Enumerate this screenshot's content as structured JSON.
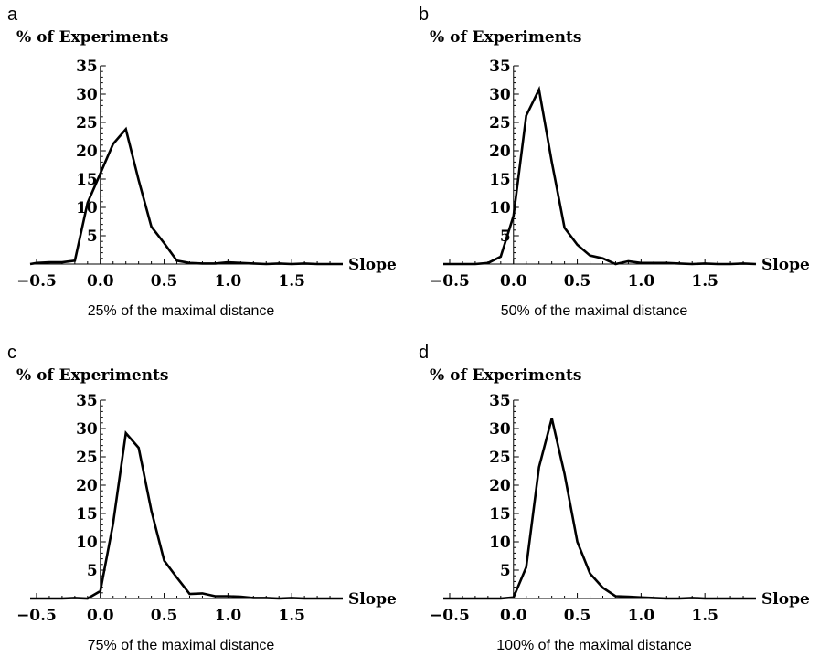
{
  "chart_data": [
    {
      "type": "line",
      "panel": "a",
      "ylabel": "% of Experiments",
      "xlabel": "Slope",
      "caption": "25% of the maximal distance",
      "xlim": [
        -0.55,
        1.9
      ],
      "ylim": [
        0,
        35
      ],
      "xticks": [
        "-0.5",
        "0.0",
        "0.5",
        "1.0",
        "1.5"
      ],
      "yticks": [
        "5",
        "10",
        "15",
        "20",
        "25",
        "30",
        "35"
      ],
      "x": [
        -0.55,
        -0.5,
        -0.4,
        -0.3,
        -0.2,
        -0.1,
        0.0,
        0.1,
        0.2,
        0.3,
        0.4,
        0.5,
        0.6,
        0.7,
        0.8,
        0.9,
        1.0,
        1.1,
        1.2,
        1.3,
        1.4,
        1.5,
        1.6,
        1.7,
        1.8,
        1.9
      ],
      "values": [
        0.0,
        0.2,
        0.3,
        0.3,
        0.6,
        10.8,
        16.0,
        21.2,
        23.8,
        14.8,
        6.6,
        3.7,
        0.6,
        0.2,
        0.1,
        0.1,
        0.3,
        0.2,
        0.1,
        0.0,
        0.1,
        0.0,
        0.1,
        0.0,
        0.0,
        0.0
      ]
    },
    {
      "type": "line",
      "panel": "b",
      "ylabel": "% of Experiments",
      "xlabel": "Slope",
      "caption": "50% of the maximal distance",
      "xlim": [
        -0.55,
        1.9
      ],
      "ylim": [
        0,
        35
      ],
      "xticks": [
        "-0.5",
        "0.0",
        "0.5",
        "1.0",
        "1.5"
      ],
      "yticks": [
        "5",
        "10",
        "15",
        "20",
        "25",
        "30",
        "35"
      ],
      "x": [
        -0.55,
        -0.5,
        -0.4,
        -0.3,
        -0.2,
        -0.1,
        0.0,
        0.1,
        0.2,
        0.3,
        0.4,
        0.5,
        0.6,
        0.7,
        0.8,
        0.9,
        1.0,
        1.1,
        1.2,
        1.3,
        1.4,
        1.5,
        1.6,
        1.7,
        1.8,
        1.9
      ],
      "values": [
        0.0,
        0.0,
        0.0,
        0.0,
        0.2,
        1.3,
        8.5,
        26.2,
        30.8,
        18.0,
        6.4,
        3.4,
        1.5,
        1.0,
        0.0,
        0.5,
        0.2,
        0.2,
        0.2,
        0.1,
        0.0,
        0.1,
        0.0,
        0.0,
        0.1,
        0.0
      ]
    },
    {
      "type": "line",
      "panel": "c",
      "ylabel": "% of Experiments",
      "xlabel": "Slope",
      "caption": "75% of the maximal distance",
      "xlim": [
        -0.55,
        1.9
      ],
      "ylim": [
        0,
        35
      ],
      "xticks": [
        "-0.5",
        "0.0",
        "0.5",
        "1.0",
        "1.5"
      ],
      "yticks": [
        "5",
        "10",
        "15",
        "20",
        "25",
        "30",
        "35"
      ],
      "x": [
        -0.55,
        -0.5,
        -0.4,
        -0.3,
        -0.2,
        -0.1,
        0.0,
        0.1,
        0.2,
        0.3,
        0.4,
        0.5,
        0.6,
        0.7,
        0.8,
        0.9,
        1.0,
        1.1,
        1.2,
        1.3,
        1.4,
        1.5,
        1.6,
        1.7,
        1.8,
        1.9
      ],
      "values": [
        0.0,
        0.0,
        0.0,
        0.0,
        0.1,
        0.0,
        1.3,
        13.2,
        29.2,
        26.6,
        15.5,
        6.7,
        3.7,
        0.8,
        0.9,
        0.4,
        0.4,
        0.3,
        0.1,
        0.1,
        0.0,
        0.1,
        0.0,
        0.0,
        0.0,
        0.0
      ]
    },
    {
      "type": "line",
      "panel": "d",
      "ylabel": "% of Experiments",
      "xlabel": "Slope",
      "caption": "100% of the maximal distance",
      "xlim": [
        -0.55,
        1.9
      ],
      "ylim": [
        0,
        35
      ],
      "xticks": [
        "-0.5",
        "0.0",
        "0.5",
        "1.0",
        "1.5"
      ],
      "yticks": [
        "5",
        "10",
        "15",
        "20",
        "25",
        "30",
        "35"
      ],
      "x": [
        -0.55,
        -0.5,
        -0.4,
        -0.3,
        -0.2,
        -0.1,
        0.0,
        0.1,
        0.2,
        0.3,
        0.4,
        0.5,
        0.6,
        0.7,
        0.8,
        0.9,
        1.0,
        1.1,
        1.2,
        1.3,
        1.4,
        1.5,
        1.6,
        1.7,
        1.8,
        1.9
      ],
      "values": [
        0.0,
        0.0,
        0.0,
        0.0,
        0.0,
        0.0,
        0.2,
        5.5,
        23.2,
        31.8,
        22.0,
        10.0,
        4.4,
        1.9,
        0.4,
        0.3,
        0.2,
        0.1,
        0.0,
        0.0,
        0.1,
        0.0,
        0.0,
        0.0,
        0.0,
        0.0
      ]
    }
  ]
}
